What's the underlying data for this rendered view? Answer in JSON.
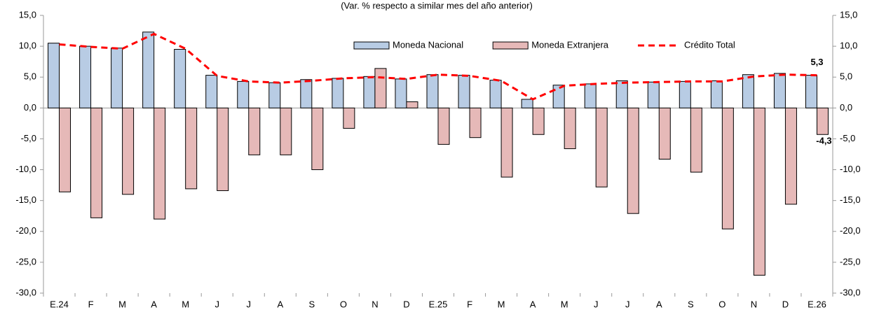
{
  "chart_data": {
    "type": "bar",
    "title": "(Var. % respecto a similar mes del año anterior)",
    "categories": [
      "E.24",
      "F",
      "M",
      "A",
      "M",
      "J",
      "J",
      "A",
      "S",
      "O",
      "N",
      "D",
      "E.25",
      "F",
      "M",
      "A",
      "M",
      "J",
      "J",
      "A",
      "S",
      "O",
      "N",
      "D",
      "E.26"
    ],
    "series": [
      {
        "name": "Moneda Nacional",
        "type": "bar",
        "color": "#b8cce4",
        "values": [
          10.5,
          10.0,
          9.7,
          12.3,
          9.5,
          5.3,
          4.3,
          4.1,
          4.6,
          4.8,
          5.1,
          4.7,
          5.4,
          5.3,
          4.5,
          1.4,
          3.7,
          3.9,
          4.4,
          4.2,
          4.3,
          4.4,
          5.4,
          5.6,
          5.3
        ]
      },
      {
        "name": "Moneda Extranjera",
        "type": "bar",
        "color": "#e6b9b8",
        "values": [
          -13.6,
          -17.8,
          -14.0,
          -18.0,
          -13.1,
          -13.4,
          -7.6,
          -7.6,
          -10.0,
          -3.3,
          6.4,
          1.0,
          -5.9,
          -4.8,
          -11.2,
          -4.3,
          -6.6,
          -12.8,
          -17.1,
          -8.3,
          -10.4,
          -19.6,
          -27.1,
          -15.6,
          -4.3
        ],
        "value_labels": [
          null,
          null,
          null,
          null,
          null,
          null,
          null,
          null,
          null,
          null,
          null,
          null,
          null,
          null,
          null,
          null,
          null,
          null,
          null,
          null,
          null,
          null,
          null,
          null,
          "-4,3"
        ]
      },
      {
        "name": "Crédito Total",
        "type": "line",
        "color": "#ff0000",
        "values": [
          10.3,
          9.9,
          9.6,
          12.0,
          9.6,
          5.2,
          4.3,
          4.1,
          4.4,
          4.8,
          5.0,
          4.7,
          5.4,
          5.2,
          4.4,
          1.4,
          3.6,
          3.9,
          4.1,
          4.2,
          4.3,
          4.3,
          5.1,
          5.4,
          5.3
        ],
        "value_labels": [
          null,
          null,
          null,
          null,
          null,
          null,
          null,
          null,
          null,
          null,
          null,
          null,
          null,
          null,
          null,
          null,
          null,
          null,
          null,
          null,
          null,
          null,
          null,
          null,
          "5,3"
        ]
      }
    ],
    "ylim": [
      -30,
      15
    ],
    "yticks": [
      {
        "value": 15,
        "label": "15,0"
      },
      {
        "value": 10,
        "label": "10,0"
      },
      {
        "value": 5,
        "label": "5,0"
      },
      {
        "value": 0,
        "label": "0,0"
      },
      {
        "value": -5,
        "label": "-5,0"
      },
      {
        "value": -10,
        "label": "-10,0"
      },
      {
        "value": -15,
        "label": "-15,0"
      },
      {
        "value": -20,
        "label": "-20,0"
      },
      {
        "value": -25,
        "label": "-25,0"
      },
      {
        "value": -30,
        "label": "-30,0"
      }
    ],
    "y2lim": [
      -30,
      15
    ],
    "y2ticks": [
      {
        "value": 15,
        "label": "15,0"
      },
      {
        "value": 10,
        "label": "10,0"
      },
      {
        "value": 5,
        "label": "5,0"
      },
      {
        "value": 0,
        "label": "0,0"
      },
      {
        "value": -5,
        "label": "-5,0"
      },
      {
        "value": -10,
        "label": "-10,0"
      },
      {
        "value": -15,
        "label": "-15,0"
      },
      {
        "value": -20,
        "label": "-20,0"
      },
      {
        "value": -25,
        "label": "-25,0"
      },
      {
        "value": -30,
        "label": "-30,0"
      }
    ],
    "grid": false,
    "legend": "top"
  }
}
